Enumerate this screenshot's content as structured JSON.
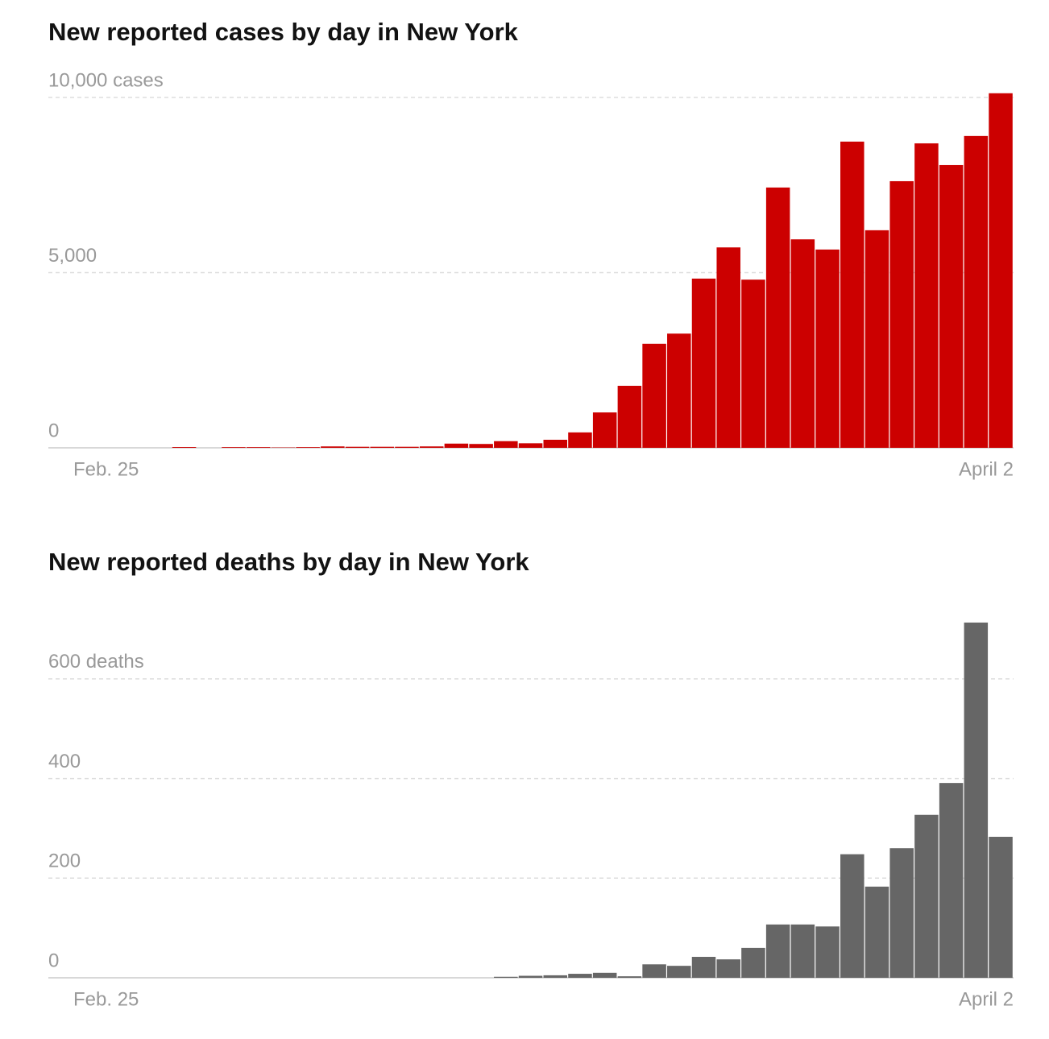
{
  "chart_data": [
    {
      "type": "bar",
      "title": "New reported cases by day in New York",
      "color": "#cc0000",
      "categories": [
        "Feb. 25",
        null,
        null,
        null,
        null,
        null,
        null,
        null,
        null,
        null,
        null,
        null,
        null,
        null,
        null,
        null,
        null,
        null,
        null,
        null,
        null,
        null,
        null,
        null,
        null,
        null,
        null,
        null,
        null,
        null,
        null,
        null,
        null,
        null,
        null,
        null,
        null,
        "April 2"
      ],
      "values": [
        0,
        0,
        0,
        0,
        22,
        0,
        20,
        20,
        10,
        20,
        40,
        30,
        30,
        30,
        40,
        120,
        110,
        190,
        130,
        230,
        440,
        1010,
        1770,
        2970,
        3260,
        4830,
        5720,
        4800,
        7430,
        5950,
        5660,
        8740,
        6210,
        7610,
        8690,
        8070,
        8900,
        10120
      ],
      "ylim": [
        0,
        10000
      ],
      "yticks": [
        0,
        {
          "value": 5000,
          "label": "5,000"
        },
        {
          "value": 10000,
          "label": "10,000 cases"
        }
      ],
      "grid": true
    },
    {
      "type": "bar",
      "title": "New reported deaths by day in New York",
      "color": "#666666",
      "categories": [
        "Feb. 25",
        null,
        null,
        null,
        null,
        null,
        null,
        null,
        null,
        null,
        null,
        null,
        null,
        null,
        null,
        null,
        null,
        null,
        null,
        null,
        null,
        null,
        null,
        null,
        null,
        null,
        null,
        null,
        null,
        null,
        null,
        null,
        null,
        null,
        null,
        null,
        null,
        "April 2"
      ],
      "values": [
        0,
        0,
        0,
        0,
        0,
        0,
        0,
        0,
        0,
        0,
        0,
        0,
        0,
        0,
        0,
        0,
        0,
        2,
        4,
        5,
        8,
        10,
        3,
        27,
        24,
        42,
        37,
        60,
        107,
        107,
        103,
        248,
        183,
        260,
        327,
        391,
        713,
        283
      ],
      "ylim": [
        0,
        700
      ],
      "yticks": [
        0,
        200,
        400,
        {
          "value": 600,
          "label": "600 deaths"
        }
      ],
      "grid": true
    }
  ]
}
